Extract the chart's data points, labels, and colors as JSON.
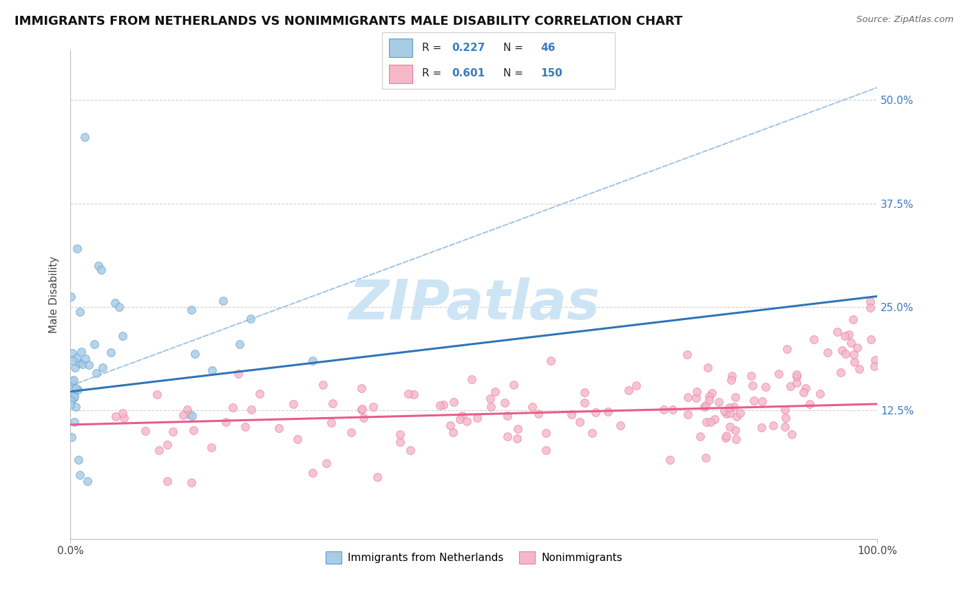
{
  "title": "IMMIGRANTS FROM NETHERLANDS VS NONIMMIGRANTS MALE DISABILITY CORRELATION CHART",
  "source": "Source: ZipAtlas.com",
  "ylabel": "Male Disability",
  "xlim": [
    0.0,
    1.0
  ],
  "ylim": [
    -0.03,
    0.56
  ],
  "ytick_vals": [
    0.125,
    0.25,
    0.375,
    0.5
  ],
  "ytick_labels": [
    "12.5%",
    "25.0%",
    "37.5%",
    "50.0%"
  ],
  "xtick_vals": [
    0.0,
    1.0
  ],
  "xtick_labels": [
    "0.0%",
    "100.0%"
  ],
  "legend_label1": "Immigrants from Netherlands",
  "legend_label2": "Nonimmigrants",
  "blue_fill": "#a8cce4",
  "blue_edge": "#5b9bd5",
  "blue_line": "#2e75b6",
  "pink_fill": "#f4b8c8",
  "pink_edge": "#e87da0",
  "pink_line": "#e85b8a",
  "dashed_color": "#9dc3e6",
  "grid_color": "#d0d0d0",
  "watermark_color": "#cde4f5",
  "title_fontsize": 13,
  "axis_fontsize": 11,
  "blue_N": 46,
  "pink_N": 150,
  "blue_intercept": 0.148,
  "blue_slope": 0.115,
  "pink_intercept": 0.108,
  "pink_slope": 0.025,
  "dashed_intercept": 0.155,
  "dashed_slope": 0.36,
  "seed": 77
}
